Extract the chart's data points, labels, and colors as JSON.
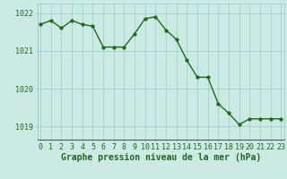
{
  "x": [
    0,
    1,
    2,
    3,
    4,
    5,
    6,
    7,
    8,
    9,
    10,
    11,
    12,
    13,
    14,
    15,
    16,
    17,
    18,
    19,
    20,
    21,
    22,
    23
  ],
  "y": [
    1021.7,
    1021.8,
    1021.6,
    1021.8,
    1021.7,
    1021.65,
    1021.1,
    1021.1,
    1021.1,
    1021.45,
    1021.85,
    1021.9,
    1021.55,
    1021.3,
    1020.75,
    1020.3,
    1020.3,
    1019.6,
    1019.35,
    1019.05,
    1019.2,
    1019.2,
    1019.2,
    1019.2
  ],
  "line_color": "#1a6b1a",
  "marker_color": "#1a6b1a",
  "bg_color": "#cceae4",
  "grid_color": "#99cccc",
  "axis_color": "#1a6b1a",
  "xlabel": "Graphe pression niveau de la mer (hPa)",
  "ylim": [
    1018.65,
    1022.25
  ],
  "yticks": [
    1019,
    1020,
    1021,
    1022
  ],
  "xticks": [
    0,
    1,
    2,
    3,
    4,
    5,
    6,
    7,
    8,
    9,
    10,
    11,
    12,
    13,
    14,
    15,
    16,
    17,
    18,
    19,
    20,
    21,
    22,
    23
  ],
  "xlabel_fontsize": 7,
  "tick_fontsize": 6,
  "line_width": 1.0,
  "marker_size": 2.5
}
